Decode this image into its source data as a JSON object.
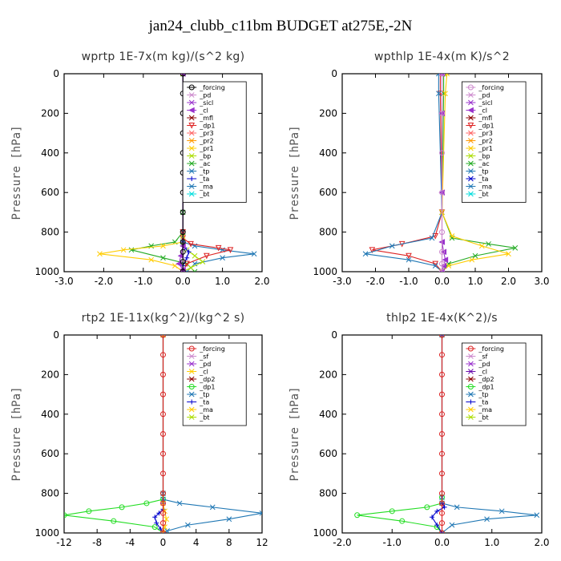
{
  "figure": {
    "suptitle": "jan24_clubb_c11bm  BUDGET at275E,-2N"
  },
  "chart_data": [
    {
      "type": "line",
      "title": "wprtp  1E-7x(m kg)/(s^2 kg)",
      "ylabel": "Pressure [hPa]",
      "xlim": [
        -3.0,
        2.0
      ],
      "xticks": [
        "-3.0",
        "-2.0",
        "-1.0",
        "0.0",
        "1.0",
        "2.0"
      ],
      "ylim": [
        1000,
        0
      ],
      "yticks": [
        "0",
        "200",
        "400",
        "600",
        "800",
        "1000"
      ],
      "legend": [
        "_forcing",
        "_pd",
        "_sicl",
        "_cl",
        "_mfl",
        "_dp1",
        "_pr3",
        "_pr2",
        "_pr1",
        "_bp",
        "_ac",
        "_tp",
        "_ta",
        "_ma",
        "_bt"
      ],
      "series": [
        {
          "name": "_forcing",
          "color": "#000000",
          "marker": "o",
          "x": [
            0,
            0,
            0,
            0,
            0,
            0,
            0,
            0,
            0,
            0,
            0,
            0,
            0
          ],
          "y": [
            0,
            100,
            200,
            300,
            400,
            500,
            600,
            700,
            800,
            850,
            900,
            950,
            1000
          ]
        },
        {
          "name": "_ac",
          "color": "#22aa22",
          "marker": "x",
          "x": [
            0,
            0,
            0,
            -0.2,
            -0.8,
            -1.3,
            -0.5,
            0.1,
            0.3
          ],
          "y": [
            0,
            700,
            800,
            850,
            870,
            890,
            930,
            960,
            1000
          ]
        },
        {
          "name": "_pr1",
          "color": "#ffcc00",
          "marker": "x",
          "x": [
            0,
            0,
            0,
            -0.5,
            -1.5,
            -2.1,
            -0.8,
            -0.2,
            0
          ],
          "y": [
            0,
            800,
            850,
            870,
            890,
            910,
            940,
            970,
            1000
          ]
        },
        {
          "name": "_tp",
          "color": "#1f77b4",
          "marker": "x",
          "x": [
            0,
            0,
            0,
            0.3,
            1.0,
            1.8,
            1.0,
            0.3,
            0.1
          ],
          "y": [
            0,
            800,
            850,
            870,
            890,
            910,
            930,
            960,
            1000
          ]
        },
        {
          "name": "_dp1",
          "color": "#dd2222",
          "marker": "v",
          "x": [
            0,
            0,
            0,
            0.2,
            0.9,
            1.2,
            0.6,
            0.1,
            0
          ],
          "y": [
            0,
            800,
            830,
            860,
            880,
            890,
            920,
            960,
            1000
          ]
        },
        {
          "name": "_bp",
          "color": "#aadd00",
          "marker": "x",
          "x": [
            0,
            0,
            0,
            0.1,
            0.3,
            0.5,
            0.2,
            0
          ],
          "y": [
            0,
            820,
            860,
            890,
            920,
            950,
            980,
            1000
          ]
        },
        {
          "name": "_ta",
          "color": "#0000cc",
          "marker": "+",
          "x": [
            0,
            0,
            0.05,
            0.15,
            0.1,
            0,
            0
          ],
          "y": [
            0,
            850,
            880,
            900,
            930,
            970,
            1000
          ]
        },
        {
          "name": "_cl",
          "color": "#9932cc",
          "marker": "<",
          "x": [
            0,
            0,
            -0.05,
            -0.1,
            0,
            0
          ],
          "y": [
            0,
            870,
            920,
            960,
            990,
            1000
          ]
        }
      ]
    },
    {
      "type": "line",
      "title": "wpthlp  1E-4x(m K)/s^2",
      "ylabel": "Pressure [hPa]",
      "xlim": [
        -3.0,
        3.0
      ],
      "xticks": [
        "-3.0",
        "-2.0",
        "-1.0",
        "0.0",
        "1.0",
        "2.0",
        "3.0"
      ],
      "ylim": [
        1000,
        0
      ],
      "yticks": [
        "0",
        "200",
        "400",
        "600",
        "800",
        "1000"
      ],
      "legend": [
        "_forcing",
        "_pd",
        "_sicl",
        "_cl",
        "_mfl",
        "_dp1",
        "_pr3",
        "_pr2",
        "_pr1",
        "_bp",
        "_ac",
        "_tp",
        "_ta",
        "_ma",
        "_bt"
      ],
      "series": [
        {
          "name": "_forcing",
          "color": "#cc88cc",
          "marker": "o",
          "x": [
            0,
            0,
            0,
            0,
            0,
            0,
            0,
            0
          ],
          "y": [
            0,
            200,
            400,
            600,
            800,
            900,
            960,
            1000
          ]
        },
        {
          "name": "_dp1",
          "color": "#dd2222",
          "marker": "v",
          "x": [
            -0.05,
            -0.05,
            0,
            -0.2,
            -1.2,
            -2.1,
            -1.0,
            -0.2,
            0
          ],
          "y": [
            0,
            100,
            700,
            820,
            860,
            890,
            920,
            960,
            1000
          ]
        },
        {
          "name": "_tp",
          "color": "#1f77b4",
          "marker": "x",
          "x": [
            -0.1,
            -0.1,
            0,
            -0.3,
            -1.5,
            -2.3,
            -1.0,
            -0.2,
            0
          ],
          "y": [
            0,
            100,
            700,
            830,
            870,
            910,
            940,
            970,
            1000
          ]
        },
        {
          "name": "_ac",
          "color": "#22aa22",
          "marker": "x",
          "x": [
            0.05,
            0.05,
            0,
            0.3,
            1.4,
            2.2,
            1.0,
            0.2,
            0
          ],
          "y": [
            0,
            100,
            700,
            830,
            860,
            880,
            920,
            960,
            1000
          ]
        },
        {
          "name": "_pr1",
          "color": "#ffcc00",
          "marker": "x",
          "x": [
            0.15,
            0.1,
            0,
            0.3,
            1.2,
            2.0,
            0.9,
            0.2,
            0
          ],
          "y": [
            0,
            100,
            700,
            820,
            870,
            910,
            940,
            970,
            1000
          ]
        },
        {
          "name": "_cl",
          "color": "#9932cc",
          "marker": "<",
          "x": [
            0,
            0,
            0,
            0,
            0.05,
            0.1,
            0.05,
            0
          ],
          "y": [
            0,
            200,
            600,
            850,
            900,
            940,
            970,
            1000
          ]
        }
      ]
    },
    {
      "type": "line",
      "title": "rtp2  1E-11x(kg^2)/(kg^2 s)",
      "ylabel": "Pressure [hPa]",
      "xlim": [
        -12,
        12
      ],
      "xticks": [
        "-12",
        "-8",
        "-4",
        "0",
        "4",
        "8",
        "12"
      ],
      "ylim": [
        1000,
        0
      ],
      "yticks": [
        "0",
        "200",
        "400",
        "600",
        "800",
        "1000"
      ],
      "legend": [
        "_forcing",
        "_sf",
        "_pd",
        "_cl",
        "_dp2",
        "_dp1",
        "_tp",
        "_ta",
        "_ma",
        "_bt"
      ],
      "series": [
        {
          "name": "_forcing",
          "color": "#dd2222",
          "marker": "o",
          "x": [
            0,
            0,
            0,
            0,
            0,
            0,
            0,
            0,
            0,
            0,
            0,
            0,
            0
          ],
          "y": [
            0,
            100,
            200,
            300,
            400,
            500,
            600,
            700,
            800,
            850,
            900,
            950,
            1000
          ]
        },
        {
          "name": "_dp1",
          "color": "#22dd22",
          "marker": "o",
          "x": [
            0,
            0,
            0,
            -2,
            -5,
            -9,
            -12,
            -6,
            -1,
            0
          ],
          "y": [
            0,
            800,
            830,
            850,
            870,
            890,
            910,
            940,
            970,
            1000
          ]
        },
        {
          "name": "_tp",
          "color": "#1f77b4",
          "marker": "x",
          "x": [
            0,
            0,
            0,
            2,
            6,
            12,
            8,
            3,
            0.5,
            0
          ],
          "y": [
            0,
            800,
            830,
            850,
            870,
            900,
            930,
            960,
            990,
            1000
          ]
        },
        {
          "name": "_ta",
          "color": "#0000cc",
          "marker": "+",
          "x": [
            0,
            0,
            0,
            -0.5,
            -1,
            -0.8,
            -0.3,
            0
          ],
          "y": [
            0,
            850,
            880,
            900,
            920,
            950,
            980,
            1000
          ]
        },
        {
          "name": "_cl",
          "color": "#ffcc00",
          "marker": "x",
          "x": [
            0,
            0,
            0.2,
            0.4,
            0.2,
            0
          ],
          "y": [
            0,
            850,
            890,
            930,
            970,
            1000
          ]
        }
      ]
    },
    {
      "type": "line",
      "title": "thlp2  1E-4x(K^2)/s",
      "ylabel": "Pressure [hPa]",
      "xlim": [
        -2.0,
        2.0
      ],
      "xticks": [
        "-2.0",
        "-1.0",
        "0.0",
        "1.0",
        "2.0"
      ],
      "ylim": [
        1000,
        0
      ],
      "yticks": [
        "0",
        "200",
        "400",
        "600",
        "800",
        "1000"
      ],
      "legend": [
        "_forcing",
        "_sf",
        "_pd",
        "_cl",
        "_dp2",
        "_dp1",
        "_tp",
        "_ta",
        "_ma",
        "_bt"
      ],
      "series": [
        {
          "name": "_forcing",
          "color": "#dd2222",
          "marker": "o",
          "x": [
            0,
            0,
            0,
            0,
            0,
            0,
            0,
            0,
            0,
            0,
            0,
            0,
            0
          ],
          "y": [
            0,
            100,
            200,
            300,
            400,
            500,
            600,
            700,
            800,
            850,
            900,
            950,
            1000
          ]
        },
        {
          "name": "_dp1",
          "color": "#22dd22",
          "marker": "o",
          "x": [
            0,
            0,
            0,
            -0.3,
            -1.0,
            -1.7,
            -0.8,
            -0.1,
            0
          ],
          "y": [
            0,
            820,
            850,
            870,
            890,
            910,
            940,
            970,
            1000
          ]
        },
        {
          "name": "_tp",
          "color": "#1f77b4",
          "marker": "x",
          "x": [
            0,
            0,
            0,
            0.3,
            1.2,
            1.9,
            0.9,
            0.2,
            0
          ],
          "y": [
            0,
            820,
            850,
            870,
            890,
            910,
            930,
            960,
            1000
          ]
        },
        {
          "name": "_ta",
          "color": "#0000cc",
          "marker": "+",
          "x": [
            0,
            0,
            0.05,
            -0.1,
            -0.2,
            -0.1,
            0
          ],
          "y": [
            0,
            850,
            870,
            890,
            920,
            960,
            1000
          ]
        }
      ]
    }
  ]
}
